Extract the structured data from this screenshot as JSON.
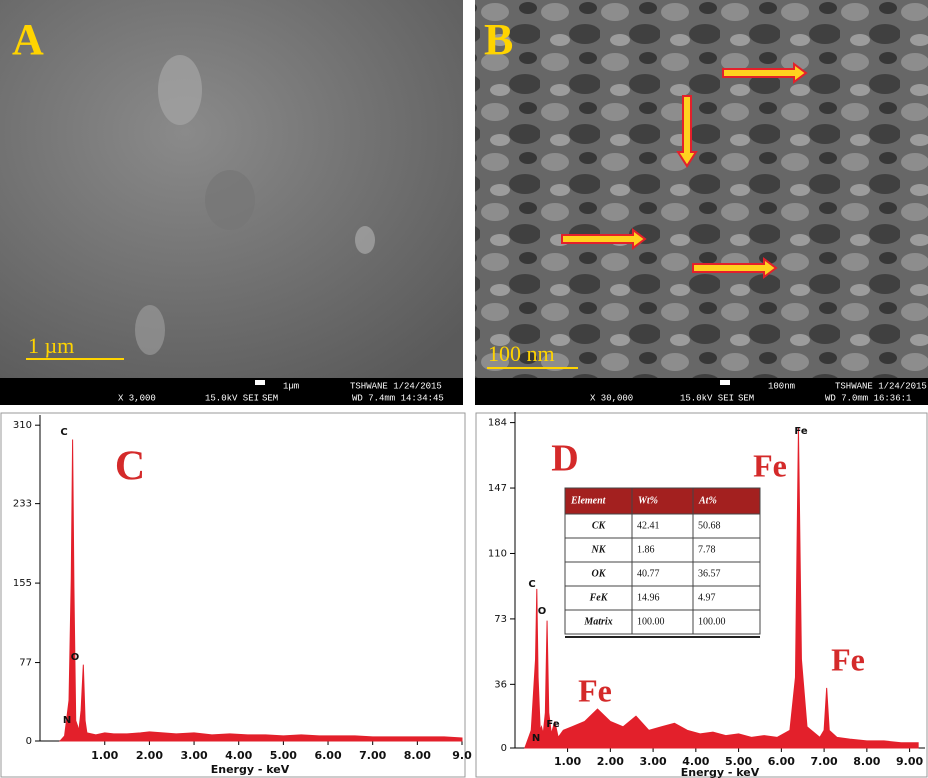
{
  "panels": [
    {
      "label": "A",
      "scale_bar": "1 µm",
      "info": [
        "X 3,000",
        "15.0kV SEI",
        "1µm",
        "SEM",
        "TSHWANE 1/24/2015",
        "WD 7.4mm 14:34:45"
      ]
    },
    {
      "label": "B",
      "scale_bar": "100 nm",
      "info": [
        "X 30,000",
        "15.0kV SEI",
        "100nm",
        "SEM",
        "TSHWANE 1/24/2015",
        "WD 7.0mm 16:36:1"
      ]
    }
  ],
  "chart_data": [
    {
      "type": "line",
      "panel_label": "C",
      "x_label": "Energy - keV",
      "color": "#e3202b",
      "xlim": [
        -0.45,
        9.0
      ],
      "ylim": [
        0,
        320
      ],
      "xticks": [
        {
          "value": 1,
          "label": "1.00"
        },
        {
          "value": 2,
          "label": "2.00"
        },
        {
          "value": 3,
          "label": "3.00"
        },
        {
          "value": 4,
          "label": "4.00"
        },
        {
          "value": 5,
          "label": "5.00"
        },
        {
          "value": 6,
          "label": "6.00"
        },
        {
          "value": 7,
          "label": "7.00"
        },
        {
          "value": 8,
          "label": "8.00"
        },
        {
          "value": 9,
          "label": "9.0"
        }
      ],
      "yticks": [
        0,
        77,
        155,
        233,
        310
      ],
      "x": [
        0.0,
        0.1,
        0.2,
        0.25,
        0.28,
        0.31,
        0.35,
        0.39,
        0.42,
        0.47,
        0.52,
        0.56,
        0.6,
        0.8,
        1.0,
        1.2,
        1.5,
        1.8,
        2.0,
        2.3,
        2.6,
        3.0,
        3.4,
        3.8,
        4.2,
        4.6,
        5.0,
        5.4,
        5.8,
        6.2,
        6.6,
        7.0,
        7.4,
        7.8,
        8.2,
        8.6,
        9.0
      ],
      "values": [
        0,
        5,
        40,
        160,
        296,
        150,
        20,
        15,
        10,
        30,
        75,
        20,
        8,
        6,
        8,
        7,
        7,
        8,
        9,
        8,
        7,
        8,
        6,
        7,
        6,
        6,
        5,
        6,
        5,
        5,
        5,
        4,
        4,
        4,
        4,
        4,
        3
      ],
      "peak_labels": [
        "C",
        "O",
        "N"
      ],
      "annotations": []
    },
    {
      "type": "line",
      "panel_label": "D",
      "x_label": "Energy - keV",
      "color": "#e3202b",
      "xlim": [
        -0.23,
        9.36
      ],
      "ylim": [
        0,
        190
      ],
      "xticks": [
        {
          "value": 1,
          "label": "1.00"
        },
        {
          "value": 2,
          "label": "2.00"
        },
        {
          "value": 3,
          "label": "3.00"
        },
        {
          "value": 4,
          "label": "4.00"
        },
        {
          "value": 5,
          "label": "5.00"
        },
        {
          "value": 6,
          "label": "6.00"
        },
        {
          "value": 7,
          "label": "7.00"
        },
        {
          "value": 8,
          "label": "8.00"
        },
        {
          "value": 9,
          "label": "9.00"
        }
      ],
      "yticks": [
        0,
        36,
        73,
        110,
        147,
        184
      ],
      "x": [
        0.0,
        0.15,
        0.25,
        0.28,
        0.31,
        0.36,
        0.39,
        0.43,
        0.48,
        0.52,
        0.56,
        0.62,
        0.7,
        0.78,
        0.9,
        1.1,
        1.4,
        1.7,
        2.0,
        2.3,
        2.6,
        2.9,
        3.2,
        3.5,
        3.8,
        4.1,
        4.4,
        4.7,
        5.0,
        5.3,
        5.6,
        5.9,
        6.2,
        6.33,
        6.4,
        6.47,
        6.6,
        6.9,
        7.0,
        7.06,
        7.12,
        7.3,
        7.6,
        8.0,
        8.4,
        8.8,
        9.2
      ],
      "values": [
        0,
        10,
        50,
        90,
        40,
        10,
        12,
        8,
        20,
        72,
        20,
        8,
        15,
        6,
        10,
        12,
        15,
        22,
        15,
        12,
        18,
        10,
        12,
        14,
        10,
        8,
        9,
        7,
        8,
        6,
        7,
        6,
        10,
        40,
        181,
        50,
        12,
        6,
        10,
        34,
        10,
        6,
        5,
        4,
        4,
        3,
        3
      ],
      "peak_labels": [
        "C",
        "O",
        "N",
        "Fe",
        "Fe"
      ],
      "annotations": [
        "Fe",
        "Fe",
        "Fe"
      ],
      "table": {
        "header": [
          "Element",
          "Wt%",
          "At%"
        ],
        "rows": [
          [
            "CK",
            "42.41",
            "50.68"
          ],
          [
            "NK",
            "1.86",
            "7.78"
          ],
          [
            "OK",
            "40.77",
            "36.57"
          ],
          [
            "FeK",
            "14.96",
            "4.97"
          ],
          [
            "Matrix",
            "100.00",
            "100.00"
          ]
        ]
      }
    }
  ]
}
